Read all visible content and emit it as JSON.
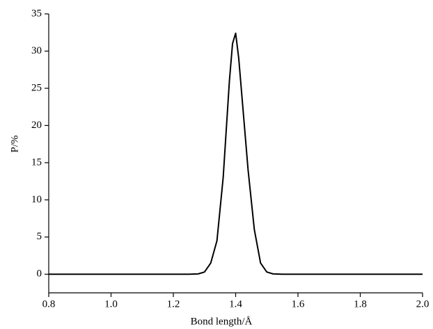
{
  "chart_data": {
    "type": "line",
    "x_label": "Bond length/Å",
    "y_label": "P/%",
    "x": [
      0.8,
      1.0,
      1.2,
      1.25,
      1.28,
      1.3,
      1.32,
      1.34,
      1.36,
      1.38,
      1.39,
      1.4,
      1.41,
      1.42,
      1.44,
      1.46,
      1.48,
      1.5,
      1.52,
      1.55,
      1.6,
      1.8,
      2.0
    ],
    "series": [
      {
        "color": "#000000",
        "values": [
          0,
          0,
          0,
          0,
          0.05,
          0.3,
          1.5,
          4.5,
          13,
          26,
          31,
          32.4,
          29,
          24,
          14,
          6,
          1.5,
          0.3,
          0.05,
          0,
          0,
          0,
          0
        ]
      }
    ],
    "xlim": [
      0.8,
      2.0
    ],
    "xticks": [
      0.8,
      {
        "value": 1,
        "label": "1.0"
      },
      1.2,
      1.4,
      1.6,
      1.8,
      {
        "value": 2,
        "label": "2.0"
      }
    ],
    "ylim": [
      -2.5,
      35
    ],
    "yticks": [
      0,
      5,
      10,
      15,
      20,
      25,
      30,
      35
    ]
  }
}
